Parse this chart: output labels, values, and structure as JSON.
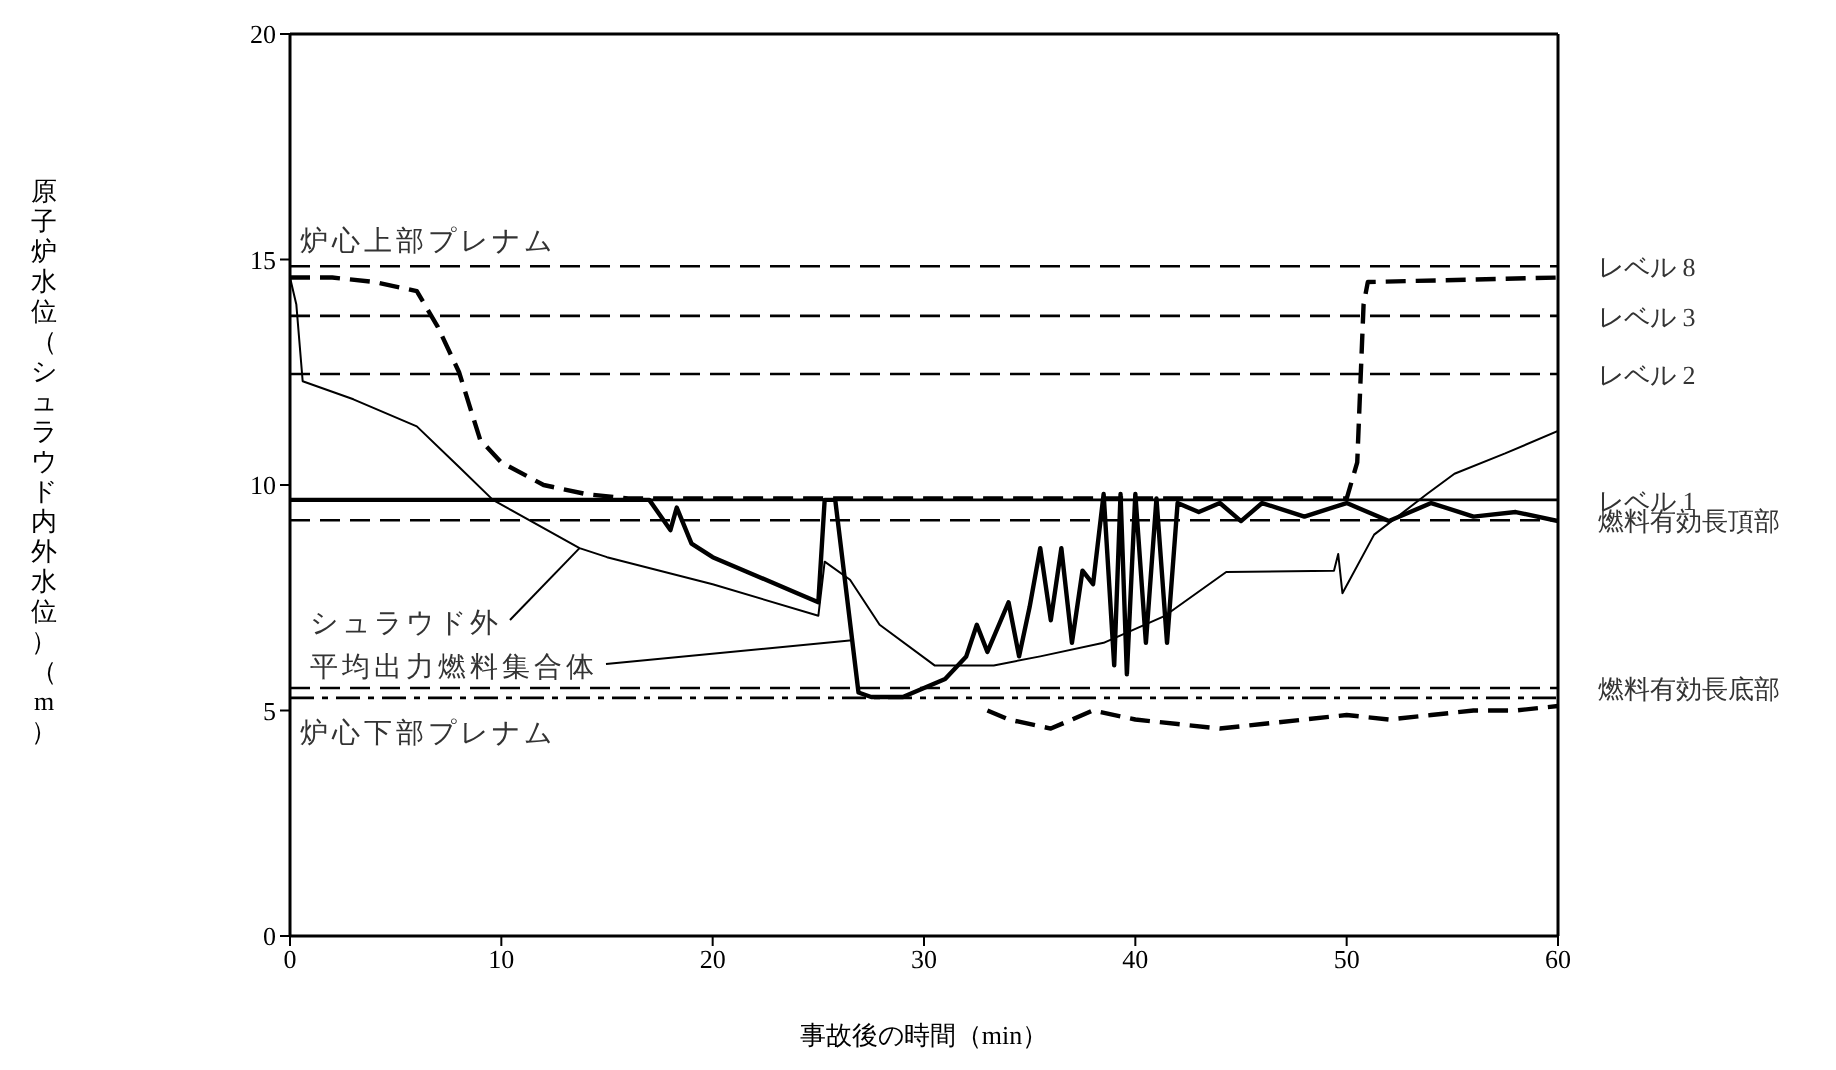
{
  "chart_data": {
    "type": "line",
    "xlabel": "事故後の時間（min）",
    "ylabel": "原子炉水位（シュラウド内外水位）（m）",
    "xlim": [
      0,
      60
    ],
    "xticks": [
      0,
      10,
      20,
      30,
      40,
      50,
      60
    ],
    "ylim": [
      0,
      20
    ],
    "yticks": [
      0,
      5,
      10,
      15,
      20
    ],
    "grid": false,
    "legend": false,
    "marker": "none",
    "series": [
      {
        "color": "#000000",
        "line_style": "solid",
        "x": [
          0,
          0.3,
          0.6,
          3,
          6,
          8,
          9.6,
          13.7,
          15,
          20,
          25,
          25.3,
          26.5,
          27.9,
          30.5,
          33.3,
          35.5,
          38.5,
          41.4,
          44.3,
          49.4,
          49.6,
          49.8,
          51.3,
          53.8,
          55.1,
          57.5,
          60
        ],
        "values": [
          14.6,
          14.0,
          12.3,
          11.9,
          11.3,
          10.4,
          9.67,
          8.6,
          8.4,
          7.8,
          7.1,
          8.3,
          7.9,
          6.9,
          6.0,
          6.0,
          6.2,
          6.5,
          7.1,
          8.07,
          8.1,
          8.47,
          7.6,
          8.9,
          9.8,
          10.25,
          10.7,
          11.2
        ]
      },
      {
        "color": "#000000",
        "line_style": "solid",
        "x": [
          0,
          17,
          18,
          18.3,
          19,
          20,
          21,
          22,
          24,
          25,
          25.3,
          25.8,
          26.9,
          27.5,
          29,
          30,
          31,
          32,
          32.5,
          33,
          34,
          34.5,
          35,
          35.5,
          36,
          36.5,
          37,
          37.5,
          38,
          38.5,
          39,
          39.3,
          39.6,
          40,
          40.5,
          41,
          41.5,
          42,
          43,
          44,
          45,
          46,
          48,
          50,
          52,
          54,
          56,
          58,
          60
        ],
        "values": [
          9.67,
          9.67,
          9.0,
          9.5,
          8.7,
          8.4,
          8.2,
          8.0,
          7.6,
          7.4,
          9.67,
          9.67,
          5.4,
          5.3,
          5.3,
          5.5,
          5.7,
          6.2,
          6.9,
          6.3,
          7.4,
          6.2,
          7.3,
          8.6,
          7.0,
          8.6,
          6.5,
          8.1,
          7.8,
          9.8,
          6.0,
          9.8,
          5.8,
          9.8,
          6.5,
          9.7,
          6.5,
          9.6,
          9.4,
          9.6,
          9.2,
          9.6,
          9.3,
          9.6,
          9.2,
          9.6,
          9.3,
          9.4,
          9.2
        ]
      },
      {
        "color": "#000000",
        "line_style": "dashed",
        "x": [
          0,
          2,
          4,
          6,
          7,
          8,
          9,
          10,
          12,
          14,
          16,
          30,
          50,
          50.5,
          50.8,
          51,
          60
        ],
        "values": [
          14.6,
          14.6,
          14.5,
          14.3,
          13.5,
          12.5,
          11.0,
          10.5,
          10.0,
          9.8,
          9.7,
          9.7,
          9.7,
          10.5,
          14.0,
          14.5,
          14.6
        ]
      },
      {
        "color": "#000000",
        "line_style": "dashed",
        "x": [
          33,
          34,
          36,
          38,
          40,
          42,
          44,
          46,
          48,
          50,
          52,
          54,
          56,
          58,
          60
        ],
        "values": [
          5.0,
          4.8,
          4.6,
          5.0,
          4.8,
          4.7,
          4.6,
          4.7,
          4.8,
          4.9,
          4.8,
          4.9,
          5.0,
          5.0,
          5.1
        ]
      }
    ],
    "ref_lines": [
      {
        "axis": "y",
        "value": 14.85,
        "label": "レベル 8",
        "color": "#000000",
        "line_style": "dashed"
      },
      {
        "axis": "y",
        "value": 13.75,
        "label": "レベル 3",
        "color": "#000000",
        "line_style": "dashed"
      },
      {
        "axis": "y",
        "value": 12.46,
        "label": "レベル 2",
        "color": "#000000",
        "line_style": "dashed"
      },
      {
        "axis": "y",
        "value": 9.67,
        "label": "レベル 1",
        "color": "#000000",
        "line_style": "solid"
      },
      {
        "axis": "y",
        "value": 9.22,
        "label": "燃料有効長頂部",
        "color": "#000000",
        "line_style": "dashed"
      },
      {
        "axis": "y",
        "value": 5.5,
        "label": "燃料有効長底部",
        "color": "#000000",
        "line_style": "dashed"
      },
      {
        "axis": "y",
        "value": 5.28,
        "color": "#000000",
        "line_style": "dotted"
      }
    ],
    "annotations": [
      {
        "text": "炉心上部プレナム",
        "x": 0,
        "y": 14.85
      },
      {
        "text": "炉心下部プレナム",
        "x": 0,
        "y": 5.28
      },
      {
        "text": "シュラウド外",
        "x": 13.7,
        "y": 8.6
      },
      {
        "text": "平均出力燃料集合体",
        "x": 26.6,
        "y": 6.56
      }
    ]
  }
}
